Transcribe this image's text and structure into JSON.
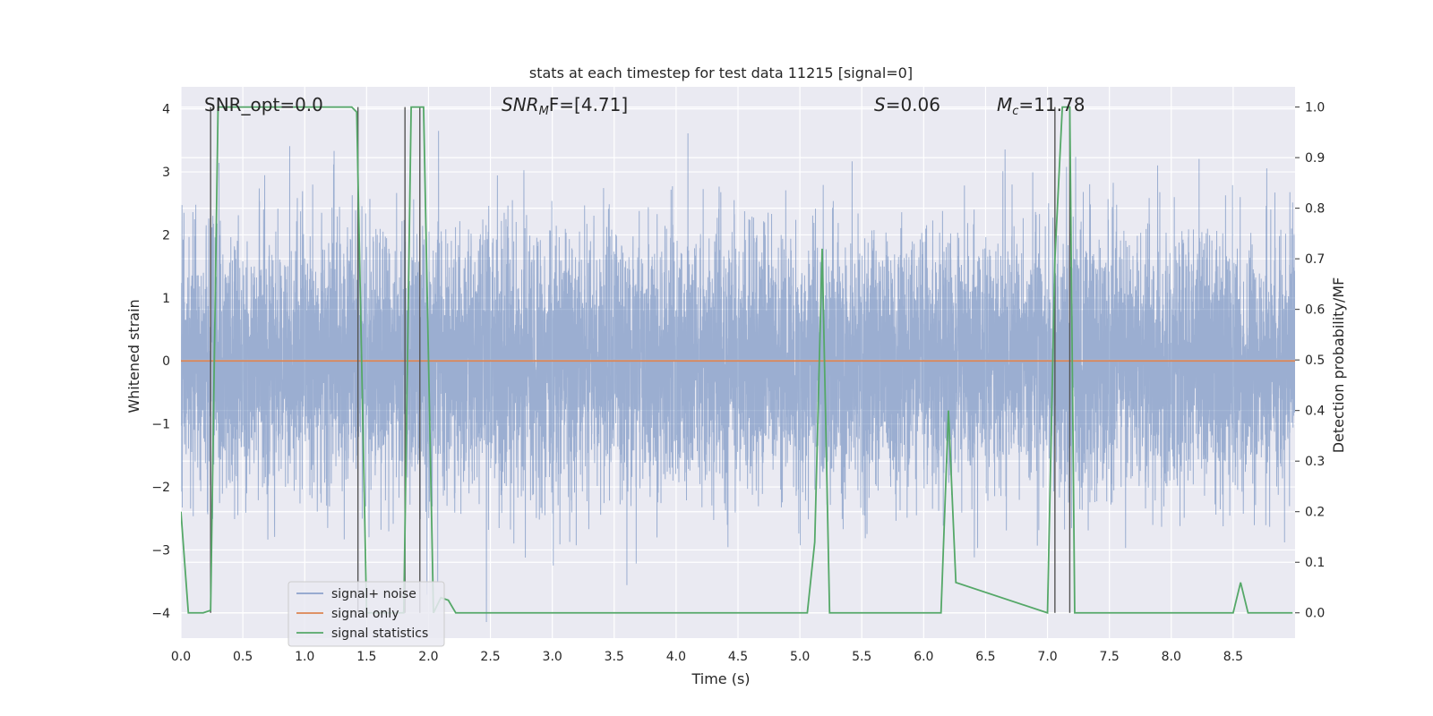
{
  "chart_data": {
    "type": "line",
    "title": "stats at each timestep for test data 11215 [signal=0]",
    "xlabel": "Time (s)",
    "ylabel": "Whitened strain",
    "ylabel_right": "Detection probability/MF",
    "xlim": [
      0,
      9
    ],
    "ylim": [
      -4.4,
      4.35
    ],
    "ylim_right": [
      -0.05,
      1.04
    ],
    "xticks": [
      0.0,
      0.5,
      1.0,
      1.5,
      2.0,
      2.5,
      3.0,
      3.5,
      4.0,
      4.5,
      5.0,
      5.5,
      6.0,
      6.5,
      7.0,
      7.5,
      8.0,
      8.5
    ],
    "xtick_labels": [
      "0.0",
      "0.5",
      "1.0",
      "1.5",
      "2.0",
      "2.5",
      "3.0",
      "3.5",
      "4.0",
      "4.5",
      "5.0",
      "5.5",
      "6.0",
      "6.5",
      "7.0",
      "7.5",
      "8.0",
      "8.5"
    ],
    "yticks": [
      -4,
      -3,
      -2,
      -1,
      0,
      1,
      2,
      3,
      4
    ],
    "ytick_labels": [
      "−4",
      "−3",
      "−2",
      "−1",
      "0",
      "1",
      "2",
      "3",
      "4"
    ],
    "yticks_right": [
      0.0,
      0.1,
      0.2,
      0.3,
      0.4,
      0.5,
      0.6,
      0.7,
      0.8,
      0.9,
      1.0
    ],
    "ytick_labels_right": [
      "0.0",
      "0.1",
      "0.2",
      "0.3",
      "0.4",
      "0.5",
      "0.6",
      "0.7",
      "0.8",
      "0.9",
      "1.0"
    ],
    "grid": true,
    "legend_placement": "lower-left",
    "annotations": {
      "snr_opt": "SNR_opt=0.0",
      "snr_mf_base": "SNR",
      "snr_mf_sub": "M",
      "snr_mf_rest": "F=[4.71]",
      "s_base": "S",
      "s_rest": "=0.06",
      "mc_base": "M",
      "mc_sub": "c",
      "mc_rest": "=11.78"
    },
    "series": [
      {
        "name": "signal+ noise",
        "color": "#4c72b0",
        "axis": "left",
        "kind": "noise",
        "sample_rate": 1024,
        "std": 1.0,
        "x_range": [
          0,
          9
        ]
      },
      {
        "name": "signal only",
        "color": "#dd8452",
        "axis": "left",
        "x": [
          0,
          9
        ],
        "y": [
          0,
          0
        ]
      },
      {
        "name": "signal statistics",
        "color": "#55a868",
        "axis": "right",
        "x": [
          0,
          0.06,
          0.18,
          0.24,
          0.3,
          0.36,
          1.38,
          1.42,
          1.5,
          1.8,
          1.86,
          1.9,
          1.96,
          2.04,
          2.1,
          2.16,
          2.22,
          5.06,
          5.12,
          5.18,
          5.24,
          6.14,
          6.2,
          6.26,
          7.0,
          7.06,
          7.12,
          7.18,
          7.22,
          7.28,
          8.5,
          8.56,
          8.62,
          8.98
        ],
        "y": [
          0.2,
          0.0,
          0.0,
          0.005,
          1.0,
          1.0,
          1.0,
          0.99,
          0.0,
          0.0,
          1.0,
          1.0,
          1.0,
          0.0,
          0.03,
          0.025,
          0.0,
          0.0,
          0.14,
          0.72,
          0.0,
          0.0,
          0.4,
          0.06,
          0.0,
          0.7,
          1.0,
          1.0,
          0.0,
          0.0,
          0.0,
          0.06,
          0.0,
          0.0
        ]
      }
    ],
    "vertical_markers": {
      "color": "#555555",
      "x": [
        0.24,
        1.43,
        1.81,
        1.93,
        7.06,
        7.18
      ]
    },
    "background": "#eaeaf2"
  }
}
